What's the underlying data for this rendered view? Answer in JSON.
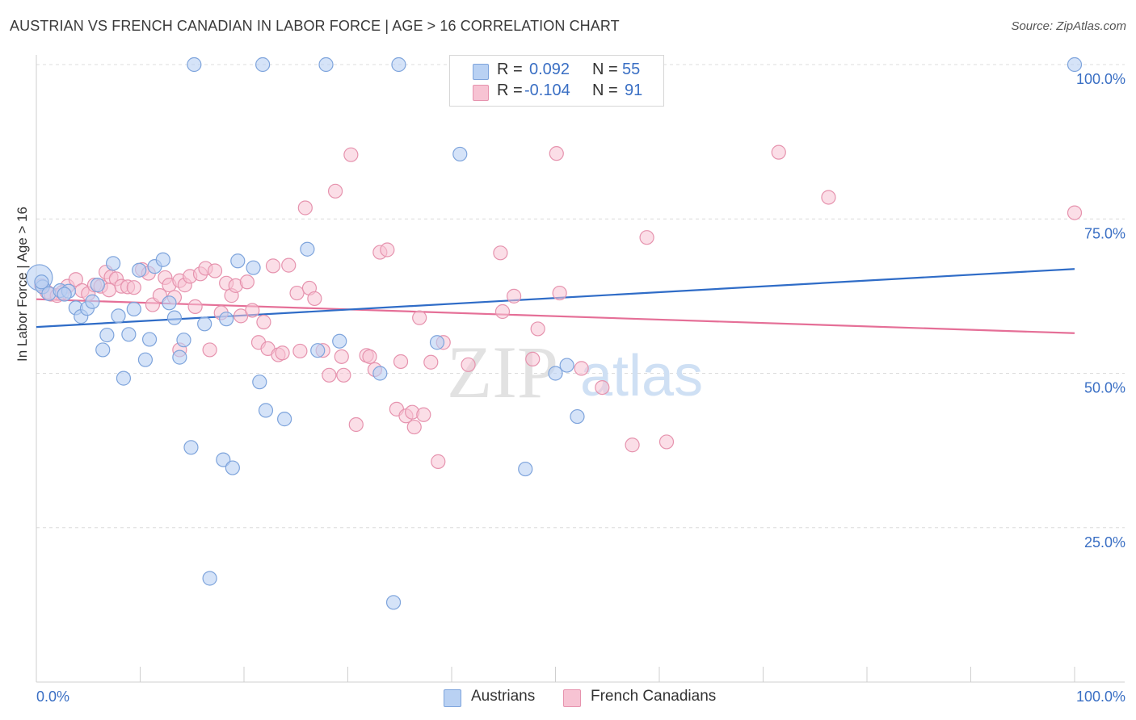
{
  "header": {
    "title": "AUSTRIAN VS FRENCH CANADIAN IN LABOR FORCE | AGE > 16 CORRELATION CHART",
    "source": "Source: ZipAtlas.com"
  },
  "legend": {
    "rows": [
      {
        "r_label": "R =",
        "r_value": "0.092",
        "n_label": "N =",
        "n_value": "55"
      },
      {
        "r_label": "R =",
        "r_value": "-0.104",
        "n_label": "N =",
        "n_value": "91"
      }
    ]
  },
  "watermark": {
    "zip": "ZIP",
    "atlas": "atlas"
  },
  "chart_data": {
    "type": "scatter",
    "xlabel": "",
    "ylabel": "In Labor Force | Age > 16",
    "xlim": [
      0,
      100
    ],
    "ylim": [
      0,
      100
    ],
    "x_tick_labels": [
      "0.0%",
      "100.0%"
    ],
    "y_tick_labels": [
      "100.0%",
      "75.0%",
      "50.0%",
      "25.0%"
    ],
    "y_ticks": [
      100,
      75,
      50,
      25
    ],
    "grid": true,
    "colors": {
      "austrians_fill": "#b9d1f3",
      "austrians_stroke": "#7ea4dc",
      "austrians_line": "#2f6cc7",
      "french_fill": "#f7c3d3",
      "french_stroke": "#e693ae",
      "french_line": "#e56f97",
      "tick_label": "#3a6fc4"
    },
    "series": [
      {
        "name": "Austrians",
        "trend": {
          "x": [
            0,
            100
          ],
          "y": [
            57.5,
            66.9
          ]
        },
        "points": [
          [
            0.3,
            65.5
          ],
          [
            0.6,
            64.0
          ],
          [
            1.2,
            62.9
          ],
          [
            2.3,
            63.4
          ],
          [
            3.1,
            63.3
          ],
          [
            3.8,
            60.6
          ],
          [
            4.3,
            59.2
          ],
          [
            4.9,
            60.5
          ],
          [
            5.4,
            61.6
          ],
          [
            5.9,
            64.3
          ],
          [
            6.4,
            53.8
          ],
          [
            6.8,
            56.2
          ],
          [
            7.4,
            67.8
          ],
          [
            7.9,
            59.3
          ],
          [
            8.4,
            49.2
          ],
          [
            8.9,
            56.3
          ],
          [
            9.4,
            60.4
          ],
          [
            9.9,
            66.7
          ],
          [
            10.5,
            52.2
          ],
          [
            10.9,
            55.5
          ],
          [
            11.4,
            67.3
          ],
          [
            12.2,
            68.4
          ],
          [
            12.8,
            61.4
          ],
          [
            13.3,
            59.0
          ],
          [
            13.8,
            52.6
          ],
          [
            14.2,
            55.4
          ],
          [
            14.9,
            38.0
          ],
          [
            15.2,
            100.0
          ],
          [
            16.2,
            58.0
          ],
          [
            16.7,
            16.8
          ],
          [
            18.0,
            36.0
          ],
          [
            18.3,
            58.8
          ],
          [
            18.9,
            34.7
          ],
          [
            19.4,
            68.2
          ],
          [
            20.9,
            67.1
          ],
          [
            21.5,
            48.6
          ],
          [
            22.1,
            44.0
          ],
          [
            23.9,
            42.6
          ],
          [
            21.8,
            100.0
          ],
          [
            26.1,
            70.1
          ],
          [
            27.1,
            53.7
          ],
          [
            27.9,
            100.0
          ],
          [
            29.2,
            55.2
          ],
          [
            33.1,
            50.0
          ],
          [
            34.4,
            12.9
          ],
          [
            34.9,
            100.0
          ],
          [
            38.6,
            55.0
          ],
          [
            40.8,
            85.5
          ],
          [
            47.1,
            34.5
          ],
          [
            50.0,
            50.0
          ],
          [
            51.1,
            51.3
          ],
          [
            52.1,
            43.0
          ],
          [
            100.0,
            100.0
          ],
          [
            0.5,
            64.8
          ],
          [
            2.7,
            62.8
          ]
        ]
      },
      {
        "name": "French Canadians",
        "trend": {
          "x": [
            0,
            100
          ],
          "y": [
            62.0,
            56.5
          ]
        },
        "points": [
          [
            0.5,
            64.2
          ],
          [
            1.0,
            63.2
          ],
          [
            1.4,
            62.8
          ],
          [
            2.0,
            62.6
          ],
          [
            3.0,
            64.1
          ],
          [
            3.8,
            65.2
          ],
          [
            4.4,
            63.4
          ],
          [
            5.0,
            62.9
          ],
          [
            5.6,
            64.3
          ],
          [
            6.2,
            64.1
          ],
          [
            6.7,
            66.4
          ],
          [
            7.2,
            65.6
          ],
          [
            7.7,
            65.3
          ],
          [
            8.2,
            64.1
          ],
          [
            8.8,
            64.0
          ],
          [
            9.4,
            63.9
          ],
          [
            10.2,
            66.8
          ],
          [
            10.8,
            66.2
          ],
          [
            11.2,
            61.1
          ],
          [
            11.9,
            62.6
          ],
          [
            12.4,
            65.5
          ],
          [
            12.8,
            64.3
          ],
          [
            13.3,
            62.3
          ],
          [
            13.8,
            65.0
          ],
          [
            14.3,
            64.3
          ],
          [
            14.8,
            65.7
          ],
          [
            15.3,
            60.8
          ],
          [
            15.8,
            66.1
          ],
          [
            16.3,
            67.0
          ],
          [
            16.7,
            53.8
          ],
          [
            17.2,
            66.6
          ],
          [
            17.8,
            59.8
          ],
          [
            18.3,
            64.6
          ],
          [
            18.8,
            62.6
          ],
          [
            19.2,
            64.2
          ],
          [
            19.7,
            59.3
          ],
          [
            20.3,
            64.8
          ],
          [
            20.8,
            60.2
          ],
          [
            21.4,
            55.0
          ],
          [
            21.9,
            58.3
          ],
          [
            22.3,
            54.0
          ],
          [
            22.8,
            67.4
          ],
          [
            23.3,
            53.0
          ],
          [
            23.7,
            53.3
          ],
          [
            24.3,
            67.5
          ],
          [
            25.1,
            63.0
          ],
          [
            25.4,
            53.6
          ],
          [
            25.9,
            76.8
          ],
          [
            26.3,
            63.8
          ],
          [
            26.8,
            62.1
          ],
          [
            27.6,
            53.7
          ],
          [
            28.2,
            49.7
          ],
          [
            28.8,
            79.5
          ],
          [
            29.4,
            52.7
          ],
          [
            29.6,
            49.7
          ],
          [
            30.3,
            85.4
          ],
          [
            30.8,
            41.7
          ],
          [
            31.8,
            52.9
          ],
          [
            32.1,
            52.7
          ],
          [
            32.6,
            50.6
          ],
          [
            33.1,
            69.6
          ],
          [
            33.8,
            70.0
          ],
          [
            34.7,
            44.2
          ],
          [
            35.1,
            51.9
          ],
          [
            35.6,
            43.1
          ],
          [
            36.2,
            43.7
          ],
          [
            36.4,
            41.3
          ],
          [
            37.3,
            43.3
          ],
          [
            38.0,
            51.8
          ],
          [
            38.7,
            35.7
          ],
          [
            39.2,
            55.0
          ],
          [
            41.6,
            51.4
          ],
          [
            44.7,
            69.5
          ],
          [
            44.9,
            60.0
          ],
          [
            46.0,
            62.5
          ],
          [
            47.8,
            52.3
          ],
          [
            48.3,
            57.2
          ],
          [
            50.1,
            85.6
          ],
          [
            50.4,
            63.0
          ],
          [
            52.5,
            50.8
          ],
          [
            54.5,
            47.7
          ],
          [
            57.4,
            38.4
          ],
          [
            58.8,
            72.0
          ],
          [
            60.7,
            38.9
          ],
          [
            71.5,
            85.8
          ],
          [
            76.3,
            78.5
          ],
          [
            100.0,
            76.0
          ],
          [
            13.8,
            53.8
          ],
          [
            36.9,
            59.0
          ],
          [
            7.0,
            63.5
          ],
          [
            2.5,
            63.1
          ]
        ]
      }
    ]
  }
}
